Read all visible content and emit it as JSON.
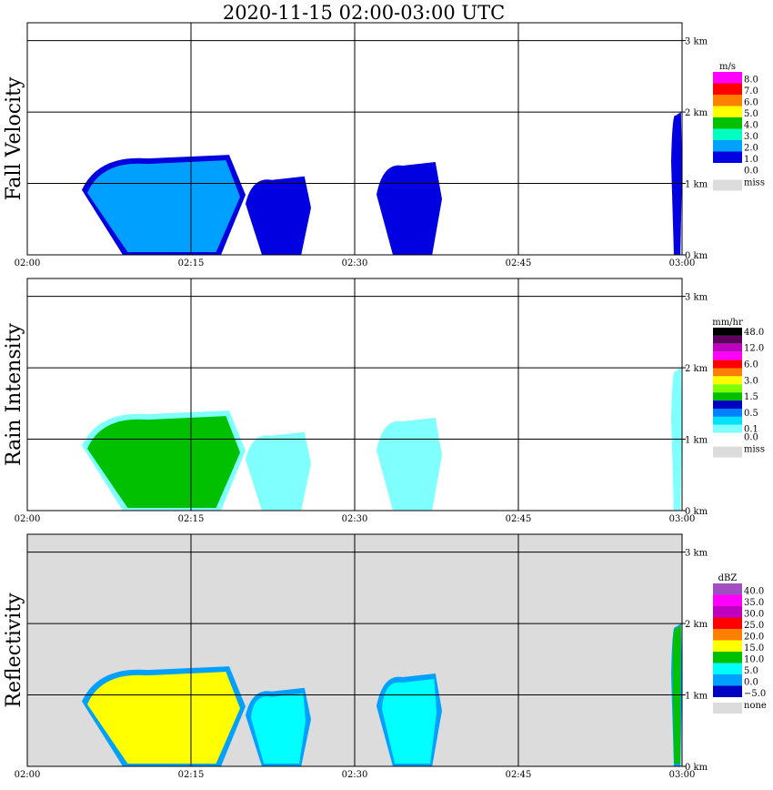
{
  "title": "2020-11-15   02:00-03:00 UTC",
  "x_ticks": [
    "02:00",
    "02:15",
    "02:30",
    "02:45",
    "03:00"
  ],
  "y_ticks": [
    "0 km",
    "1 km",
    "2 km",
    "3 km"
  ],
  "panels": [
    {
      "name": "fall-velocity",
      "ylabel": "Fall Velocity",
      "unit": "m/s",
      "background": "#ffffff",
      "legend": [
        {
          "label": "8.0",
          "color": "#ff00ff"
        },
        {
          "label": "7.0",
          "color": "#ff0000"
        },
        {
          "label": "6.0",
          "color": "#ff8000"
        },
        {
          "label": "5.0",
          "color": "#ffff00"
        },
        {
          "label": "4.0",
          "color": "#00c000"
        },
        {
          "label": "3.0",
          "color": "#00ffc0"
        },
        {
          "label": "2.0",
          "color": "#00a0ff"
        },
        {
          "label": "1.0",
          "color": "#0000e0"
        },
        {
          "label": "0.0",
          "color": "#ffffff"
        }
      ],
      "missing": {
        "label": "miss",
        "color": "#dcdcdc"
      }
    },
    {
      "name": "rain-intensity",
      "ylabel": "Rain Intensity",
      "unit": "mm/hr",
      "background": "#ffffff",
      "legend": [
        {
          "label": "48.0",
          "color": "#000000"
        },
        {
          "label": "",
          "color": "#600060"
        },
        {
          "label": "12.0",
          "color": "#c000c0"
        },
        {
          "label": "",
          "color": "#ff00ff"
        },
        {
          "label": "6.0",
          "color": "#ff0000"
        },
        {
          "label": "",
          "color": "#ff8000"
        },
        {
          "label": "3.0",
          "color": "#ffff00"
        },
        {
          "label": "",
          "color": "#80ff00"
        },
        {
          "label": "1.5",
          "color": "#00c000"
        },
        {
          "label": "",
          "color": "#0000c0"
        },
        {
          "label": "0.5",
          "color": "#0080ff"
        },
        {
          "label": "",
          "color": "#00e0ff"
        },
        {
          "label": "0.1",
          "color": "#80ffff"
        },
        {
          "label": "0.0",
          "color": "#ffffff"
        }
      ],
      "missing": {
        "label": "miss",
        "color": "#dcdcdc"
      }
    },
    {
      "name": "reflectivity",
      "ylabel": "Reflectivity",
      "unit": "dBZ",
      "background": "#dcdcdc",
      "legend": [
        {
          "label": "40.0",
          "color": "#a050c0"
        },
        {
          "label": "35.0",
          "color": "#ff00ff"
        },
        {
          "label": "30.0",
          "color": "#c000c0"
        },
        {
          "label": "25.0",
          "color": "#ff0000"
        },
        {
          "label": "20.0",
          "color": "#ff8000"
        },
        {
          "label": "15.0",
          "color": "#ffff00"
        },
        {
          "label": "10.0",
          "color": "#00c000"
        },
        {
          "label": "5.0",
          "color": "#00ffff"
        },
        {
          "label": "0.0",
          "color": "#00a0ff"
        },
        {
          "label": "−5.0",
          "color": "#0000c0"
        }
      ],
      "missing": {
        "label": "none",
        "color": "#dcdcdc"
      }
    }
  ],
  "chart_data": [
    {
      "type": "heatmap",
      "title": "Fall Velocity",
      "unit": "m/s",
      "x_range": [
        "02:00",
        "03:00"
      ],
      "y_range_km": [
        0,
        3
      ],
      "echoes": [
        {
          "start": "02:05",
          "end": "02:20",
          "top_km": 1.4,
          "value": 2.0
        },
        {
          "start": "02:20",
          "end": "02:26",
          "top_km": 1.1,
          "value": 1.5
        },
        {
          "start": "02:32",
          "end": "02:38",
          "top_km": 1.3,
          "value": 1.5
        },
        {
          "start": "02:59",
          "end": "03:00",
          "top_km": 2.0,
          "value": 1.5
        }
      ]
    },
    {
      "type": "heatmap",
      "title": "Rain Intensity",
      "unit": "mm/hr",
      "x_range": [
        "02:00",
        "03:00"
      ],
      "y_range_km": [
        0,
        3
      ],
      "echoes": [
        {
          "start": "02:05",
          "end": "02:20",
          "top_km": 1.4,
          "value": 1.5
        },
        {
          "start": "02:20",
          "end": "02:26",
          "top_km": 1.1,
          "value": 0.1
        },
        {
          "start": "02:32",
          "end": "02:38",
          "top_km": 1.3,
          "value": 0.1
        },
        {
          "start": "02:59",
          "end": "03:00",
          "top_km": 2.0,
          "value": 0.1
        }
      ]
    },
    {
      "type": "heatmap",
      "title": "Reflectivity",
      "unit": "dBZ",
      "x_range": [
        "02:00",
        "03:00"
      ],
      "y_range_km": [
        0,
        3
      ],
      "echoes": [
        {
          "start": "02:05",
          "end": "02:20",
          "top_km": 1.4,
          "value": 15.0
        },
        {
          "start": "02:20",
          "end": "02:26",
          "top_km": 1.1,
          "value": 5.0
        },
        {
          "start": "02:32",
          "end": "02:38",
          "top_km": 1.3,
          "value": 5.0
        },
        {
          "start": "02:59",
          "end": "03:00",
          "top_km": 2.0,
          "value": 10.0
        }
      ]
    }
  ]
}
